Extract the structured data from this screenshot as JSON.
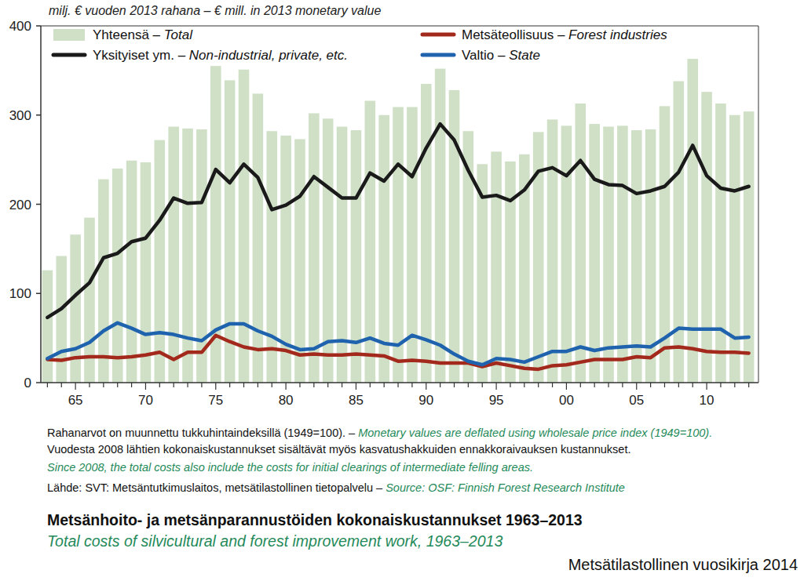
{
  "chart_data": {
    "type": "bar",
    "title": "Metsänhoito- ja metsänparannustöiden kokonaiskustannukset 1963–2013",
    "subtitle": "Total costs of silvicultural and forest improvement work, 1963–2013",
    "y_label": "milj. € vuoden 2013 rahana – € mill. in 2013 monetary value",
    "publication": "Metsätilastollinen vuosikirja 2014",
    "notes": [
      {
        "fi": "Rahanarvot on muunnettu tukkuhintaindeksillä (1949=100). – ",
        "en": "Monetary values are deflated using wholesale price index (1949=100)."
      },
      {
        "fi": "Vuodesta 2008 lähtien kokonaiskustannukset sisältävät myös kasvatushakkuiden ennakkoraivauksen kustannukset."
      },
      {
        "en": "Since 2008, the total costs also include the costs for initial clearings of intermediate felling areas."
      },
      {
        "fi": "Lähde: SVT: Metsäntutkimuslaitos, metsätilastollinen tietopalvelu – ",
        "en": "Source: OSF: Finnish Forest Research Institute"
      }
    ],
    "categories": [
      null,
      null,
      "65",
      null,
      null,
      null,
      null,
      "70",
      null,
      null,
      null,
      null,
      "75",
      null,
      null,
      null,
      null,
      "80",
      null,
      null,
      null,
      null,
      "85",
      null,
      null,
      null,
      null,
      "90",
      null,
      null,
      null,
      null,
      "95",
      null,
      null,
      null,
      null,
      "00",
      null,
      null,
      null,
      null,
      "05",
      null,
      null,
      null,
      null,
      "10",
      null,
      null,
      null
    ],
    "series": [
      {
        "name": "Yhteensä – Total",
        "type": "bar",
        "color": "#cfe0c6",
        "values": [
          126,
          142,
          166,
          185,
          228,
          240,
          249,
          247,
          272,
          287,
          285,
          284,
          355,
          339,
          351,
          324,
          282,
          277,
          273,
          302,
          296,
          287,
          283,
          316,
          300,
          309,
          309,
          335,
          352,
          328,
          282,
          245,
          259,
          248,
          256,
          281,
          295,
          288,
          313,
          290,
          287,
          288,
          283,
          284,
          310,
          338,
          363,
          326,
          313,
          300,
          304
        ]
      },
      {
        "name": "Yksityiset ym. – Non-industrial, private, etc.",
        "type": "line",
        "color": "#1a1a1a",
        "values": [
          73,
          83,
          98,
          112,
          140,
          145,
          158,
          162,
          182,
          207,
          201,
          202,
          239,
          224,
          245,
          230,
          194,
          199,
          209,
          231,
          219,
          207,
          207,
          235,
          226,
          245,
          231,
          263,
          290,
          272,
          238,
          208,
          210,
          204,
          216,
          237,
          241,
          232,
          249,
          228,
          222,
          221,
          212,
          215,
          220,
          236,
          266,
          232,
          218,
          215,
          220
        ]
      },
      {
        "name": "Metsäteollisuus – Forest industries",
        "type": "line",
        "color": "#a3291c",
        "values": [
          26,
          25,
          28,
          29,
          29,
          28,
          29,
          31,
          34,
          26,
          34,
          34,
          53,
          46,
          40,
          37,
          38,
          36,
          31,
          32,
          31,
          31,
          32,
          31,
          30,
          24,
          25,
          24,
          22,
          22,
          22,
          18,
          22,
          19,
          16,
          15,
          19,
          20,
          23,
          26,
          26,
          26,
          29,
          28,
          39,
          40,
          38,
          35,
          34,
          34,
          33
        ]
      },
      {
        "name": "Valtio – State",
        "type": "line",
        "color": "#1f62ad",
        "values": [
          27,
          35,
          38,
          45,
          58,
          67,
          61,
          54,
          56,
          54,
          50,
          47,
          59,
          66,
          66,
          58,
          52,
          43,
          37,
          38,
          46,
          47,
          45,
          50,
          44,
          42,
          53,
          48,
          42,
          32,
          24,
          20,
          27,
          26,
          23,
          29,
          35,
          35,
          40,
          36,
          39,
          40,
          41,
          40,
          50,
          61,
          60,
          60,
          60,
          50,
          51
        ]
      }
    ],
    "ylim": [
      0,
      400
    ],
    "yticks": [
      0,
      100,
      200,
      300,
      400
    ],
    "grid": false,
    "legend": "top"
  }
}
